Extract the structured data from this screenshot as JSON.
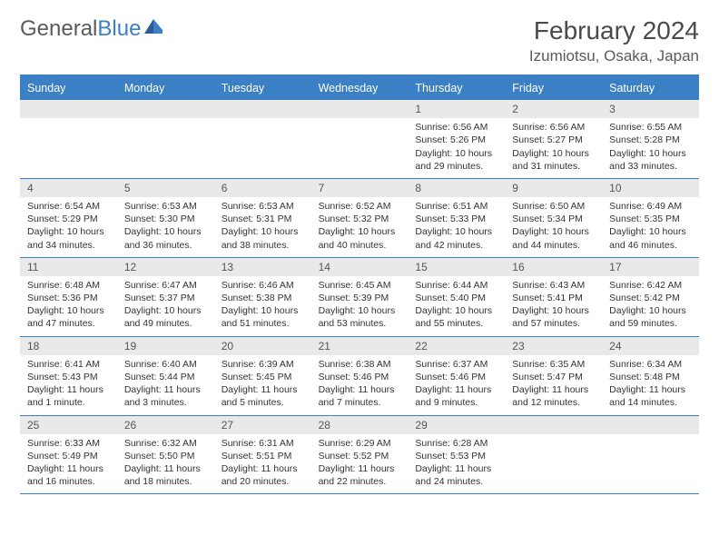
{
  "logo": {
    "text1": "General",
    "text2": "Blue"
  },
  "title": "February 2024",
  "location": "Izumiotsu, Osaka, Japan",
  "colors": {
    "accent": "#3b7fc4",
    "header_text": "#5a5a5a",
    "day_bar": "#e9e9e9",
    "body_text": "#333333"
  },
  "weekdays": [
    "Sunday",
    "Monday",
    "Tuesday",
    "Wednesday",
    "Thursday",
    "Friday",
    "Saturday"
  ],
  "weeks": [
    [
      null,
      null,
      null,
      null,
      {
        "n": "1",
        "sr": "Sunrise: 6:56 AM",
        "ss": "Sunset: 5:26 PM",
        "dl": "Daylight: 10 hours and 29 minutes."
      },
      {
        "n": "2",
        "sr": "Sunrise: 6:56 AM",
        "ss": "Sunset: 5:27 PM",
        "dl": "Daylight: 10 hours and 31 minutes."
      },
      {
        "n": "3",
        "sr": "Sunrise: 6:55 AM",
        "ss": "Sunset: 5:28 PM",
        "dl": "Daylight: 10 hours and 33 minutes."
      }
    ],
    [
      {
        "n": "4",
        "sr": "Sunrise: 6:54 AM",
        "ss": "Sunset: 5:29 PM",
        "dl": "Daylight: 10 hours and 34 minutes."
      },
      {
        "n": "5",
        "sr": "Sunrise: 6:53 AM",
        "ss": "Sunset: 5:30 PM",
        "dl": "Daylight: 10 hours and 36 minutes."
      },
      {
        "n": "6",
        "sr": "Sunrise: 6:53 AM",
        "ss": "Sunset: 5:31 PM",
        "dl": "Daylight: 10 hours and 38 minutes."
      },
      {
        "n": "7",
        "sr": "Sunrise: 6:52 AM",
        "ss": "Sunset: 5:32 PM",
        "dl": "Daylight: 10 hours and 40 minutes."
      },
      {
        "n": "8",
        "sr": "Sunrise: 6:51 AM",
        "ss": "Sunset: 5:33 PM",
        "dl": "Daylight: 10 hours and 42 minutes."
      },
      {
        "n": "9",
        "sr": "Sunrise: 6:50 AM",
        "ss": "Sunset: 5:34 PM",
        "dl": "Daylight: 10 hours and 44 minutes."
      },
      {
        "n": "10",
        "sr": "Sunrise: 6:49 AM",
        "ss": "Sunset: 5:35 PM",
        "dl": "Daylight: 10 hours and 46 minutes."
      }
    ],
    [
      {
        "n": "11",
        "sr": "Sunrise: 6:48 AM",
        "ss": "Sunset: 5:36 PM",
        "dl": "Daylight: 10 hours and 47 minutes."
      },
      {
        "n": "12",
        "sr": "Sunrise: 6:47 AM",
        "ss": "Sunset: 5:37 PM",
        "dl": "Daylight: 10 hours and 49 minutes."
      },
      {
        "n": "13",
        "sr": "Sunrise: 6:46 AM",
        "ss": "Sunset: 5:38 PM",
        "dl": "Daylight: 10 hours and 51 minutes."
      },
      {
        "n": "14",
        "sr": "Sunrise: 6:45 AM",
        "ss": "Sunset: 5:39 PM",
        "dl": "Daylight: 10 hours and 53 minutes."
      },
      {
        "n": "15",
        "sr": "Sunrise: 6:44 AM",
        "ss": "Sunset: 5:40 PM",
        "dl": "Daylight: 10 hours and 55 minutes."
      },
      {
        "n": "16",
        "sr": "Sunrise: 6:43 AM",
        "ss": "Sunset: 5:41 PM",
        "dl": "Daylight: 10 hours and 57 minutes."
      },
      {
        "n": "17",
        "sr": "Sunrise: 6:42 AM",
        "ss": "Sunset: 5:42 PM",
        "dl": "Daylight: 10 hours and 59 minutes."
      }
    ],
    [
      {
        "n": "18",
        "sr": "Sunrise: 6:41 AM",
        "ss": "Sunset: 5:43 PM",
        "dl": "Daylight: 11 hours and 1 minute."
      },
      {
        "n": "19",
        "sr": "Sunrise: 6:40 AM",
        "ss": "Sunset: 5:44 PM",
        "dl": "Daylight: 11 hours and 3 minutes."
      },
      {
        "n": "20",
        "sr": "Sunrise: 6:39 AM",
        "ss": "Sunset: 5:45 PM",
        "dl": "Daylight: 11 hours and 5 minutes."
      },
      {
        "n": "21",
        "sr": "Sunrise: 6:38 AM",
        "ss": "Sunset: 5:46 PM",
        "dl": "Daylight: 11 hours and 7 minutes."
      },
      {
        "n": "22",
        "sr": "Sunrise: 6:37 AM",
        "ss": "Sunset: 5:46 PM",
        "dl": "Daylight: 11 hours and 9 minutes."
      },
      {
        "n": "23",
        "sr": "Sunrise: 6:35 AM",
        "ss": "Sunset: 5:47 PM",
        "dl": "Daylight: 11 hours and 12 minutes."
      },
      {
        "n": "24",
        "sr": "Sunrise: 6:34 AM",
        "ss": "Sunset: 5:48 PM",
        "dl": "Daylight: 11 hours and 14 minutes."
      }
    ],
    [
      {
        "n": "25",
        "sr": "Sunrise: 6:33 AM",
        "ss": "Sunset: 5:49 PM",
        "dl": "Daylight: 11 hours and 16 minutes."
      },
      {
        "n": "26",
        "sr": "Sunrise: 6:32 AM",
        "ss": "Sunset: 5:50 PM",
        "dl": "Daylight: 11 hours and 18 minutes."
      },
      {
        "n": "27",
        "sr": "Sunrise: 6:31 AM",
        "ss": "Sunset: 5:51 PM",
        "dl": "Daylight: 11 hours and 20 minutes."
      },
      {
        "n": "28",
        "sr": "Sunrise: 6:29 AM",
        "ss": "Sunset: 5:52 PM",
        "dl": "Daylight: 11 hours and 22 minutes."
      },
      {
        "n": "29",
        "sr": "Sunrise: 6:28 AM",
        "ss": "Sunset: 5:53 PM",
        "dl": "Daylight: 11 hours and 24 minutes."
      },
      null,
      null
    ]
  ]
}
